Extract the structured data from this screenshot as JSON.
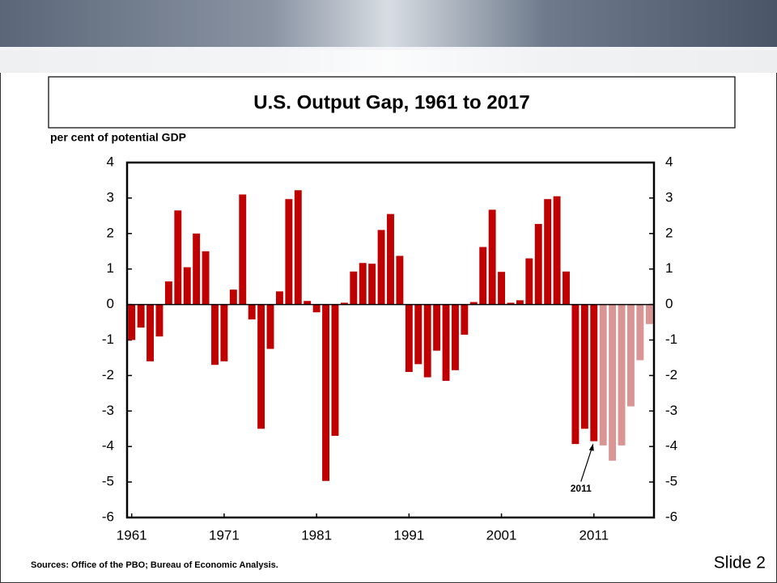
{
  "slide_label": "Slide 2",
  "sources": "Sources:  Office of the PBO; Bureau of Economic Analysis.",
  "chart_data": {
    "type": "bar",
    "title": "U.S. Output Gap, 1961 to 2017",
    "y_label": "per cent of potential GDP",
    "series": [
      {
        "color": "#c00000",
        "x": [
          1961,
          1962,
          1963,
          1964,
          1965,
          1966,
          1967,
          1968,
          1969,
          1970,
          1971,
          1972,
          1973,
          1974,
          1975,
          1976,
          1977,
          1978,
          1979,
          1980,
          1981,
          1982,
          1983,
          1984,
          1985,
          1986,
          1987,
          1988,
          1989,
          1990,
          1991,
          1992,
          1993,
          1994,
          1995,
          1996,
          1997,
          1998,
          1999,
          2000,
          2001,
          2002,
          2003,
          2004,
          2005,
          2006,
          2007,
          2008,
          2009,
          2010,
          2011
        ],
        "values": [
          -1.0,
          -0.65,
          -1.6,
          -0.9,
          0.65,
          2.65,
          1.05,
          2.0,
          1.5,
          -1.7,
          -1.6,
          0.42,
          3.1,
          -0.42,
          -3.5,
          -1.25,
          0.37,
          2.97,
          3.22,
          0.1,
          -0.22,
          -4.97,
          -3.7,
          0.05,
          0.93,
          1.17,
          1.15,
          2.1,
          2.55,
          1.37,
          -1.9,
          -1.68,
          -2.05,
          -1.3,
          -2.15,
          -1.85,
          -0.85,
          0.07,
          1.62,
          2.67,
          0.92,
          0.05,
          0.12,
          1.3,
          2.27,
          2.97,
          3.05,
          0.93,
          -3.93,
          -3.5,
          -3.85
        ]
      },
      {
        "color": "#d99594",
        "x": [
          2012,
          2013,
          2014,
          2015,
          2016,
          2017
        ],
        "values": [
          -3.97,
          -4.4,
          -3.97,
          -2.87,
          -1.57,
          -0.55
        ]
      }
    ],
    "annotation": "2011",
    "xlim": [
      1960.5,
      2017.5
    ],
    "xticks": [
      1961,
      1971,
      1981,
      1991,
      2001,
      2011
    ],
    "ylim": [
      -6,
      4
    ],
    "yticks": [
      -6,
      -5,
      -4,
      -3,
      -2,
      -1,
      0,
      1,
      2,
      3,
      4
    ],
    "y2lim": [
      -6,
      4
    ],
    "y2ticks": [
      -6,
      -5,
      -4,
      -3,
      -2,
      -1,
      0,
      1,
      2,
      3,
      4
    ]
  }
}
